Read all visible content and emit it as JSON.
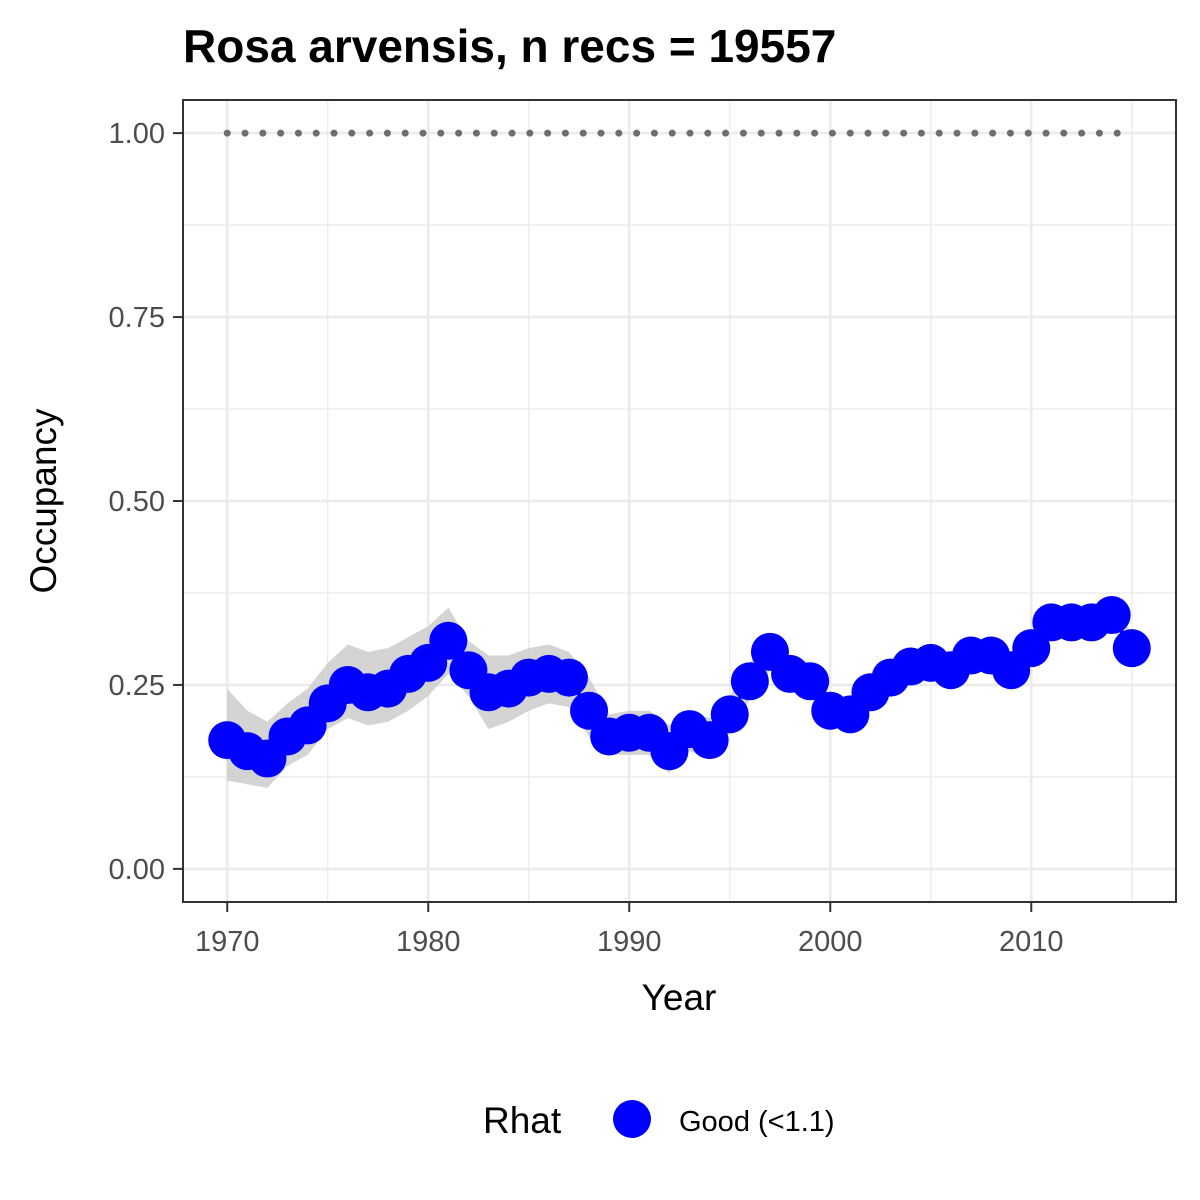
{
  "chart_data": {
    "type": "line",
    "title": "Rosa arvensis, n recs = 19557",
    "xlabel": "Year",
    "ylabel": "Occupancy",
    "xlim": [
      1967.8,
      2017.2
    ],
    "ylim": [
      -0.045,
      1.045
    ],
    "x_ticks": [
      1970,
      1980,
      1990,
      2000,
      2010
    ],
    "x_tick_labels": [
      "1970",
      "1980",
      "1990",
      "2000",
      "2010"
    ],
    "y_ticks": [
      0,
      0.25,
      0.5,
      0.75,
      1
    ],
    "y_tick_labels": [
      "0.00",
      "0.25",
      "0.50",
      "0.75",
      "1.00"
    ],
    "grid": true,
    "legend": {
      "title": "Rhat",
      "position": "bottom",
      "entries": [
        {
          "label": "Good (<1.1)",
          "color": "#0000ff"
        }
      ]
    },
    "reference_line": {
      "y": 1.0,
      "style": "dotted",
      "color": "#6e6e6e",
      "x_from": 1970,
      "x_to": 2015
    },
    "band_color": "#cccccc",
    "series": [
      {
        "name": "Good (<1.1)",
        "color": "#0000ff",
        "x": [
          1970,
          1971,
          1972,
          1973,
          1974,
          1975,
          1976,
          1977,
          1978,
          1979,
          1980,
          1981,
          1982,
          1983,
          1984,
          1985,
          1986,
          1987,
          1988,
          1989,
          1990,
          1991,
          1992,
          1993,
          1994,
          1995,
          1996,
          1997,
          1998,
          1999,
          2000,
          2001,
          2002,
          2003,
          2004,
          2005,
          2006,
          2007,
          2008,
          2009,
          2010,
          2011,
          2012,
          2013,
          2014,
          2015
        ],
        "y": [
          0.175,
          0.16,
          0.15,
          0.18,
          0.195,
          0.225,
          0.25,
          0.24,
          0.245,
          0.265,
          0.28,
          0.31,
          0.27,
          0.24,
          0.245,
          0.26,
          0.265,
          0.26,
          0.215,
          0.18,
          0.185,
          0.185,
          0.16,
          0.19,
          0.175,
          0.21,
          0.255,
          0.295,
          0.265,
          0.255,
          0.215,
          0.21,
          0.24,
          0.26,
          0.275,
          0.28,
          0.27,
          0.29,
          0.29,
          0.27,
          0.3,
          0.335,
          0.335,
          0.335,
          0.345,
          0.3
        ],
        "lower": [
          0.12,
          0.115,
          0.11,
          0.14,
          0.155,
          0.19,
          0.205,
          0.195,
          0.2,
          0.215,
          0.235,
          0.265,
          0.235,
          0.19,
          0.2,
          0.215,
          0.225,
          0.22,
          0.18,
          0.155,
          0.155,
          0.155,
          0.13,
          0.16,
          0.15,
          0.185,
          0.23,
          0.27,
          0.245,
          0.235,
          0.2,
          0.195,
          0.225,
          0.245,
          0.26,
          0.265,
          0.255,
          0.275,
          0.275,
          0.255,
          0.285,
          0.32,
          0.32,
          0.32,
          0.33,
          0.285
        ],
        "upper": [
          0.245,
          0.215,
          0.2,
          0.225,
          0.245,
          0.28,
          0.305,
          0.295,
          0.3,
          0.315,
          0.33,
          0.355,
          0.31,
          0.29,
          0.29,
          0.3,
          0.305,
          0.295,
          0.26,
          0.21,
          0.215,
          0.215,
          0.195,
          0.215,
          0.205,
          0.235,
          0.28,
          0.32,
          0.29,
          0.28,
          0.235,
          0.23,
          0.26,
          0.28,
          0.295,
          0.3,
          0.29,
          0.31,
          0.31,
          0.29,
          0.32,
          0.355,
          0.355,
          0.355,
          0.365,
          0.32
        ]
      }
    ]
  }
}
